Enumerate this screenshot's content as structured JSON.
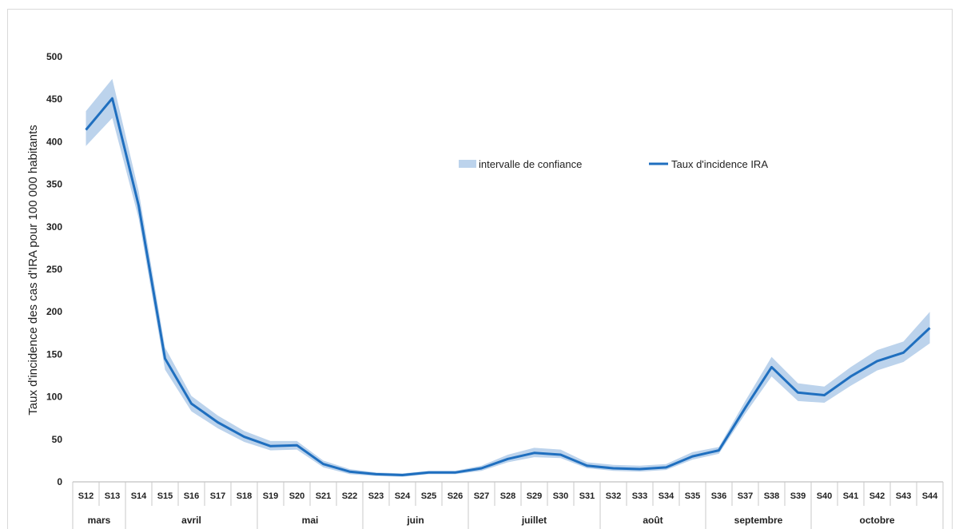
{
  "chart_data": {
    "type": "line",
    "ylabel": "Taux d'incidence des cas d'IRA pour 100 000 habitants",
    "ylim": [
      0,
      500
    ],
    "yticks": [
      0,
      50,
      100,
      150,
      200,
      250,
      300,
      350,
      400,
      450,
      500
    ],
    "grid": false,
    "legend_position": "top-right",
    "colors": {
      "line": "#1f6fbf",
      "band": "#bcd3ec"
    },
    "x": [
      "S12",
      "S13",
      "S14",
      "S15",
      "S16",
      "S17",
      "S18",
      "S19",
      "S20",
      "S21",
      "S22",
      "S23",
      "S24",
      "S25",
      "S26",
      "S27",
      "S28",
      "S29",
      "S30",
      "S31",
      "S32",
      "S33",
      "S34",
      "S35",
      "S36",
      "S37",
      "S38",
      "S39",
      "S40",
      "S41",
      "S42",
      "S43",
      "S44"
    ],
    "months": [
      {
        "label": "mars",
        "from": 0,
        "to": 1
      },
      {
        "label": "avril",
        "from": 2,
        "to": 6
      },
      {
        "label": "mai",
        "from": 7,
        "to": 10
      },
      {
        "label": "juin",
        "from": 11,
        "to": 14
      },
      {
        "label": "juillet",
        "from": 15,
        "to": 19
      },
      {
        "label": "août",
        "from": 20,
        "to": 23
      },
      {
        "label": "septembre",
        "from": 24,
        "to": 27
      },
      {
        "label": "octobre",
        "from": 28,
        "to": 32
      }
    ],
    "series": [
      {
        "name": "Taux d'incidence IRA",
        "values": [
          414,
          451,
          325,
          145,
          92,
          70,
          53,
          42,
          43,
          21,
          12,
          9,
          8,
          11,
          11,
          16,
          27,
          34,
          32,
          19,
          16,
          15,
          17,
          30,
          37,
          87,
          135,
          105,
          102,
          124,
          142,
          152,
          181
        ]
      },
      {
        "name": "intervalle de confiance",
        "lower": [
          395,
          428,
          310,
          132,
          83,
          63,
          47,
          37,
          38,
          17,
          9,
          7,
          6,
          9,
          9,
          13,
          23,
          29,
          28,
          16,
          13,
          12,
          14,
          26,
          33,
          80,
          124,
          95,
          93,
          113,
          131,
          141,
          163
        ],
        "upper": [
          436,
          474,
          342,
          158,
          101,
          78,
          60,
          48,
          48,
          25,
          15,
          11,
          10,
          13,
          13,
          19,
          32,
          40,
          38,
          23,
          20,
          19,
          21,
          35,
          41,
          95,
          147,
          116,
          112,
          135,
          155,
          165,
          200
        ]
      }
    ]
  }
}
